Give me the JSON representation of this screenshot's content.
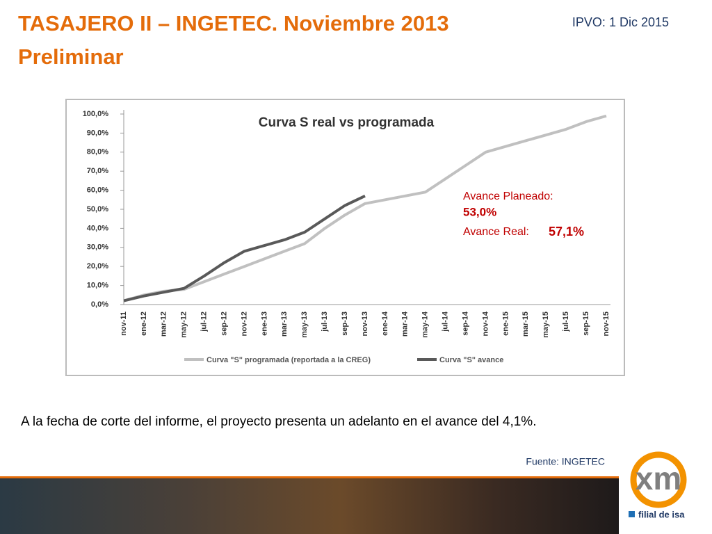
{
  "slide": {
    "title": "TASAJERO II – INGETEC. Noviembre 2013",
    "subtitle": "Preliminar",
    "date": "IPVO: 1 Dic 2015",
    "body": "A la fecha de corte del informe, el proyecto presenta un adelanto en el avance del 4,1%.",
    "source": "Fuente: INGETEC",
    "logo": "xm",
    "tagline": "filial de isa"
  },
  "chart_data": {
    "type": "line",
    "title": "Curva S real vs programada",
    "categories": [
      "nov-11",
      "ene-12",
      "mar-12",
      "may-12",
      "jul-12",
      "sep-12",
      "nov-12",
      "ene-13",
      "mar-13",
      "may-13",
      "jul-13",
      "sep-13",
      "nov-13",
      "ene-14",
      "mar-14",
      "may-14",
      "jul-14",
      "sep-14",
      "nov-14",
      "ene-15",
      "mar-15",
      "may-15",
      "jul-15",
      "sep-15",
      "nov-15"
    ],
    "series": [
      {
        "name": "Curva \"S\" programada (reportada a la CREG)",
        "color": "#c0c0c0",
        "values": [
          2,
          5,
          7,
          8,
          12,
          16,
          20,
          24,
          28,
          32,
          40,
          47,
          53,
          55,
          57,
          59,
          66,
          73,
          80,
          83,
          86,
          89,
          92,
          96,
          99
        ]
      },
      {
        "name": "Curva \"S\" avance",
        "color": "#595959",
        "values": [
          2,
          4.5,
          6.5,
          8.5,
          15,
          22,
          28,
          31,
          34,
          38,
          45,
          52,
          57,
          null,
          null,
          null,
          null,
          null,
          null,
          null,
          null,
          null,
          null,
          null,
          null
        ]
      }
    ],
    "ylim": [
      0,
      100
    ],
    "yticks": [
      {
        "value": 0,
        "label": "0,0%"
      },
      {
        "value": 10,
        "label": "10,0%"
      },
      {
        "value": 20,
        "label": "20,0%"
      },
      {
        "value": 30,
        "label": "30,0%"
      },
      {
        "value": 40,
        "label": "40,0%"
      },
      {
        "value": 50,
        "label": "50,0%"
      },
      {
        "value": 60,
        "label": "60,0%"
      },
      {
        "value": 70,
        "label": "70,0%"
      },
      {
        "value": 80,
        "label": "80,0%"
      },
      {
        "value": 90,
        "label": "90,0%"
      },
      {
        "value": 100,
        "label": "100,0%"
      }
    ],
    "annotations": [
      "Avance Planeado:",
      "53,0%",
      "Avance Real:",
      "57,1%"
    ],
    "legend": "bottom",
    "grid": false
  }
}
